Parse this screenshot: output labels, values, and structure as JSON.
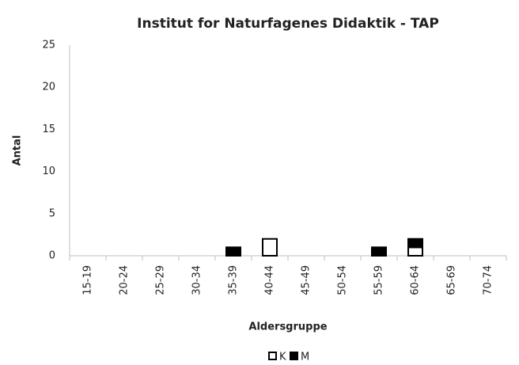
{
  "chart_data": {
    "type": "stacked_bar",
    "title": "Institut for Naturfagenes Didaktik - TAP",
    "xlabel": "Aldersgruppe",
    "ylabel": "Antal",
    "categories": [
      "15-19",
      "20-24",
      "25-29",
      "30-34",
      "35-39",
      "40-44",
      "45-49",
      "50-54",
      "55-59",
      "60-64",
      "65-69",
      "70-74"
    ],
    "series": [
      {
        "name": "K",
        "color": "#ffffff",
        "values": [
          0,
          0,
          0,
          0,
          0,
          2,
          0,
          0,
          0,
          1,
          0,
          0
        ]
      },
      {
        "name": "M",
        "color": "#000000",
        "values": [
          0,
          0,
          0,
          0,
          1,
          0,
          0,
          0,
          1,
          1,
          0,
          0
        ]
      }
    ],
    "ylim": [
      0,
      25
    ],
    "yticks": [
      0,
      5,
      10,
      15,
      20,
      25
    ],
    "grid": false,
    "legend": "bottom"
  }
}
